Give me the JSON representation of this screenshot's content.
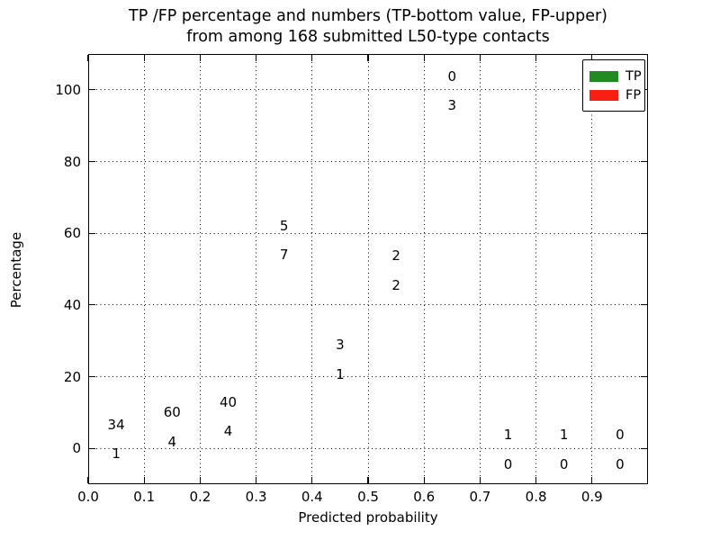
{
  "figure": {
    "title_line1": "TP /FP percentage and numbers (TP-bottom value, FP-upper)",
    "title_line2": "from among 168 submitted L50-type contacts",
    "xlabel": "Predicted probability",
    "ylabel": "Percentage"
  },
  "legend": {
    "items": [
      {
        "label": "TP",
        "color": "#218a21"
      },
      {
        "label": "FP",
        "color": "#fb1f13"
      }
    ]
  },
  "chart_data": {
    "type": "bar",
    "stacked": true,
    "title": "TP /FP percentage and numbers (TP-bottom value, FP-upper) from among 168 submitted L50-type contacts",
    "xlabel": "Predicted probability",
    "ylabel": "Percentage",
    "bin_width": 0.1,
    "bin_starts": [
      0.0,
      0.1,
      0.2,
      0.3,
      0.4,
      0.5,
      0.6,
      0.7,
      0.8,
      0.9
    ],
    "series": [
      {
        "name": "TP",
        "color": "#218a21",
        "counts": [
          1,
          4,
          4,
          7,
          1,
          2,
          3,
          0,
          0,
          0
        ],
        "percent": [
          2.86,
          6.25,
          9.09,
          58.33,
          25,
          50,
          100,
          0,
          0,
          0
        ]
      },
      {
        "name": "FP",
        "color": "#fb1f13",
        "counts": [
          34,
          60,
          40,
          5,
          3,
          2,
          0,
          1,
          1,
          0
        ],
        "percent": [
          97.14,
          93.75,
          90.91,
          41.67,
          75,
          50,
          0,
          100,
          100,
          0
        ]
      }
    ],
    "total_contacts": 168,
    "xtick_labels": [
      "0.0",
      "0.1",
      "0.2",
      "0.3",
      "0.4",
      "0.5",
      "0.6",
      "0.7",
      "0.8",
      "0.9"
    ],
    "ytick_values": [
      0,
      20,
      40,
      60,
      80,
      100
    ],
    "xlim": [
      0.0,
      1.0
    ],
    "ylim": [
      -10,
      110
    ],
    "grid": true,
    "legend_position": "upper right"
  }
}
